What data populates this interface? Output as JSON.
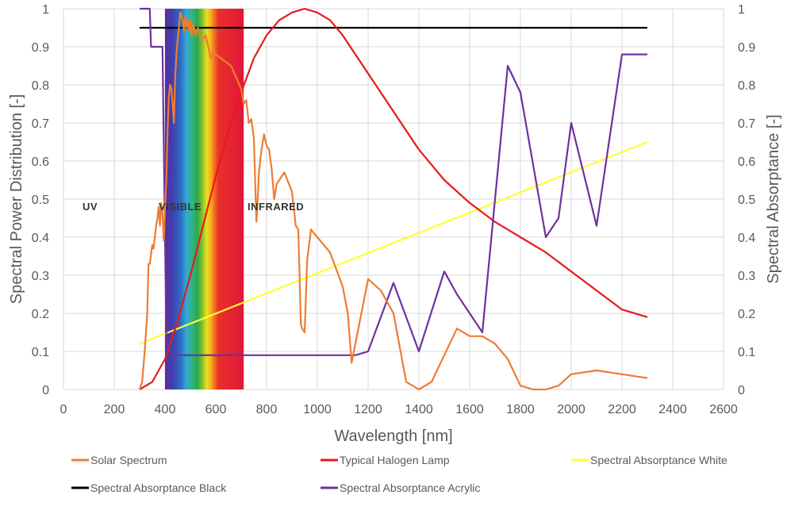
{
  "chart_data": {
    "type": "line",
    "xlabel": "Wavelength [nm]",
    "ylabel": "Spectral Power Distribution [-]",
    "y2label": "Spectral Absorptance [-]",
    "xlim": [
      0,
      2600
    ],
    "ylim": [
      0,
      1
    ],
    "y2lim": [
      0,
      1
    ],
    "x_ticks": [
      0,
      200,
      400,
      600,
      800,
      1000,
      1200,
      1400,
      1600,
      1800,
      2000,
      2200,
      2400,
      2600
    ],
    "y_ticks": [
      "0",
      "0.1",
      "0.2",
      "0.3",
      "0.4",
      "0.5",
      "0.6",
      "0.7",
      "0.8",
      "0.9",
      "1"
    ],
    "grid": true,
    "legend_position": "bottom",
    "visible_band": {
      "x_start": 400,
      "x_end": 710
    },
    "region_labels": [
      {
        "text": "UV",
        "x": 200,
        "y": 0.45
      },
      {
        "text": "VISIBLE",
        "x": 500,
        "y": 0.45
      },
      {
        "text": "INFRARED",
        "x": 850,
        "y": 0.45
      }
    ],
    "series": [
      {
        "name": "Solar Spectrum",
        "color": "#ED7D31",
        "x": [
          300,
          310,
          320,
          330,
          335,
          340,
          350,
          355,
          360,
          365,
          370,
          375,
          380,
          385,
          390,
          395,
          400,
          405,
          410,
          415,
          420,
          425,
          430,
          435,
          440,
          445,
          450,
          455,
          460,
          465,
          470,
          475,
          480,
          485,
          490,
          495,
          500,
          505,
          510,
          515,
          520,
          530,
          540,
          550,
          560,
          570,
          580,
          590,
          600,
          620,
          640,
          660,
          680,
          700,
          710,
          720,
          730,
          740,
          750,
          760,
          765,
          770,
          780,
          790,
          800,
          810,
          820,
          830,
          840,
          850,
          870,
          900,
          915,
          925,
          930,
          935,
          940,
          950,
          960,
          975,
          1000,
          1050,
          1100,
          1120,
          1135,
          1200,
          1250,
          1300,
          1350,
          1400,
          1450,
          1500,
          1550,
          1600,
          1650,
          1700,
          1750,
          1800,
          1850,
          1900,
          1950,
          2000,
          2100,
          2200,
          2300
        ],
        "y": [
          0.0,
          0.02,
          0.1,
          0.2,
          0.33,
          0.33,
          0.38,
          0.37,
          0.4,
          0.43,
          0.45,
          0.48,
          0.43,
          0.49,
          0.46,
          0.39,
          0.48,
          0.55,
          0.68,
          0.77,
          0.8,
          0.79,
          0.75,
          0.7,
          0.82,
          0.88,
          0.92,
          0.95,
          0.99,
          0.98,
          0.97,
          0.94,
          0.98,
          0.95,
          0.97,
          0.94,
          0.97,
          0.93,
          0.96,
          0.95,
          0.93,
          0.95,
          0.92,
          0.92,
          0.93,
          0.9,
          0.87,
          0.89,
          0.88,
          0.87,
          0.86,
          0.85,
          0.82,
          0.79,
          0.75,
          0.76,
          0.7,
          0.71,
          0.66,
          0.44,
          0.5,
          0.57,
          0.63,
          0.67,
          0.64,
          0.63,
          0.58,
          0.5,
          0.54,
          0.55,
          0.57,
          0.52,
          0.43,
          0.42,
          0.3,
          0.17,
          0.16,
          0.15,
          0.34,
          0.42,
          0.4,
          0.36,
          0.27,
          0.2,
          0.07,
          0.29,
          0.26,
          0.2,
          0.02,
          0.0,
          0.02,
          0.09,
          0.16,
          0.14,
          0.14,
          0.12,
          0.08,
          0.01,
          0.0,
          0.0,
          0.01,
          0.04,
          0.05,
          0.04,
          0.03
        ]
      },
      {
        "name": "Typical Halogen Lamp",
        "color": "#E8191C",
        "x": [
          300,
          350,
          400,
          450,
          500,
          550,
          600,
          650,
          700,
          750,
          800,
          850,
          900,
          950,
          1000,
          1050,
          1100,
          1200,
          1300,
          1400,
          1500,
          1600,
          1700,
          1800,
          1900,
          2000,
          2100,
          2200,
          2300
        ],
        "y": [
          0.0,
          0.02,
          0.08,
          0.18,
          0.3,
          0.43,
          0.56,
          0.68,
          0.78,
          0.87,
          0.93,
          0.97,
          0.99,
          1.0,
          0.99,
          0.97,
          0.93,
          0.83,
          0.73,
          0.63,
          0.55,
          0.49,
          0.44,
          0.4,
          0.36,
          0.31,
          0.26,
          0.21,
          0.19
        ]
      },
      {
        "name": "Spectral Absorptance White",
        "color": "#FFFF33",
        "x": [
          300,
          2300
        ],
        "y": [
          0.12,
          0.65
        ]
      },
      {
        "name": "Spectral Absorptance Black",
        "color": "#000000",
        "x": [
          300,
          2300
        ],
        "y": [
          0.95,
          0.95
        ]
      },
      {
        "name": "Spectral Absorptance Acrylic",
        "color": "#7030A0",
        "x": [
          300,
          340,
          345,
          390,
          400,
          405,
          410,
          420,
          425,
          430,
          450,
          500,
          600,
          800,
          1000,
          1100,
          1150,
          1200,
          1300,
          1400,
          1500,
          1550,
          1650,
          1750,
          1800,
          1900,
          1950,
          2000,
          2100,
          2200,
          2300
        ],
        "y": [
          1.0,
          1.0,
          0.9,
          0.9,
          0.4,
          0.15,
          0.1,
          0.1,
          0.1,
          0.09,
          0.09,
          0.09,
          0.09,
          0.09,
          0.09,
          0.09,
          0.09,
          0.1,
          0.28,
          0.1,
          0.31,
          0.25,
          0.15,
          0.85,
          0.78,
          0.4,
          0.45,
          0.7,
          0.43,
          0.88,
          0.88
        ]
      }
    ]
  }
}
